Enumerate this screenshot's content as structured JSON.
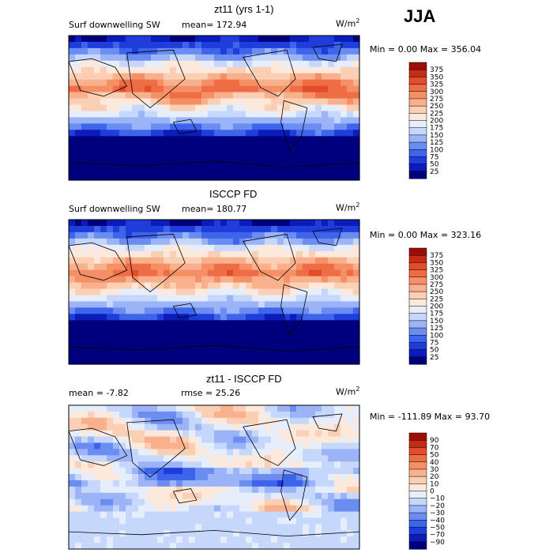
{
  "season": "JJA",
  "units_base": "W/m",
  "units_exp": "2",
  "panels": [
    {
      "title": "zt11 (yrs 1-1)",
      "variable": "Surf downwelling SW",
      "stat_text": "mean= 172.94",
      "rmse_text": "",
      "range_text": "Min =    0.00 Max = 356.04",
      "colors": [
        "#00007d",
        "#0a1cb9",
        "#1e3ddb",
        "#3d64ea",
        "#6b8cf0",
        "#9bb4f7",
        "#c5d7fb",
        "#e6eefc",
        "#fce9dc",
        "#fbcfb3",
        "#f9b08d",
        "#f58f66",
        "#ee6d45",
        "#e14c2b",
        "#c62b17",
        "#9d0d07"
      ],
      "levels": [
        "375",
        "350",
        "325",
        "300",
        "275",
        "250",
        "225",
        "200",
        "175",
        "150",
        "125",
        "100",
        "75",
        "50",
        "25"
      ]
    },
    {
      "title": "ISCCP FD",
      "variable": "Surf downwelling SW",
      "stat_text": "mean= 180.77",
      "rmse_text": "",
      "range_text": "Min =    0.00 Max = 323.16",
      "colors": [
        "#00007d",
        "#0a1cb9",
        "#1e3ddb",
        "#3d64ea",
        "#6b8cf0",
        "#9bb4f7",
        "#c5d7fb",
        "#e6eefc",
        "#fce9dc",
        "#fbcfb3",
        "#f9b08d",
        "#f58f66",
        "#ee6d45",
        "#e14c2b",
        "#c62b17",
        "#9d0d07"
      ],
      "levels": [
        "375",
        "350",
        "325",
        "300",
        "275",
        "250",
        "225",
        "200",
        "175",
        "150",
        "125",
        "100",
        "75",
        "50",
        "25"
      ]
    },
    {
      "title": "zt11 - ISCCP FD",
      "variable": "",
      "stat_text": "mean =   -7.82",
      "rmse_text": "rmse =  25.26",
      "range_text": "Min = -111.89 Max =  93.70",
      "colors": [
        "#00007d",
        "#0a1cb9",
        "#1e3ddb",
        "#3d64ea",
        "#6b8cf0",
        "#9bb4f7",
        "#c5d7fb",
        "#e6eefc",
        "#fce9dc",
        "#fbcfb3",
        "#f9b08d",
        "#f58f66",
        "#ee6d45",
        "#e14c2b",
        "#c62b17",
        "#9d0d07"
      ],
      "levels": [
        "90",
        "70",
        "50",
        "40",
        "30",
        "20",
        "10",
        "0",
        "−10",
        "−20",
        "−30",
        "−40",
        "−50",
        "−70",
        "−90"
      ]
    }
  ],
  "chart_data": [
    {
      "type": "heatmap",
      "title": "zt11 (yrs 1-1)",
      "subtitle": "Surf downwelling SW",
      "units": "W/m2",
      "mean": 172.94,
      "min": 0.0,
      "max": 356.04,
      "colorbar_levels": [
        25,
        50,
        75,
        100,
        125,
        150,
        175,
        200,
        225,
        250,
        275,
        300,
        325,
        350,
        375
      ]
    },
    {
      "type": "heatmap",
      "title": "ISCCP FD",
      "subtitle": "Surf downwelling SW",
      "units": "W/m2",
      "mean": 180.77,
      "min": 0.0,
      "max": 323.16,
      "colorbar_levels": [
        25,
        50,
        75,
        100,
        125,
        150,
        175,
        200,
        225,
        250,
        275,
        300,
        325,
        350,
        375
      ]
    },
    {
      "type": "heatmap",
      "title": "zt11 - ISCCP FD",
      "units": "W/m2",
      "mean": -7.82,
      "rmse": 25.26,
      "min": -111.89,
      "max": 93.7,
      "colorbar_levels": [
        -90,
        -70,
        -50,
        -40,
        -30,
        -20,
        -10,
        0,
        10,
        20,
        30,
        40,
        50,
        70,
        90
      ]
    }
  ]
}
